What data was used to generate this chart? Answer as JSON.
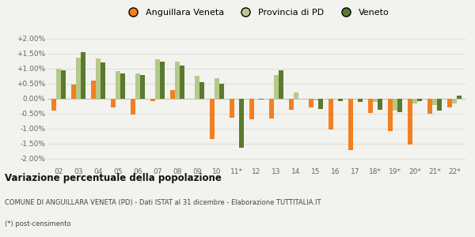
{
  "years": [
    "02",
    "03",
    "04",
    "05",
    "06",
    "07",
    "08",
    "09",
    "10",
    "11*",
    "12",
    "13",
    "14",
    "15",
    "16",
    "17",
    "18*",
    "19*",
    "20*",
    "21*",
    "22*"
  ],
  "anguillara": [
    -0.4,
    0.45,
    0.58,
    -0.3,
    -0.55,
    -0.08,
    0.28,
    0.0,
    -1.35,
    -0.65,
    -0.7,
    -0.68,
    -0.38,
    -0.3,
    -1.05,
    -1.72,
    -0.48,
    -1.1,
    -1.55,
    -0.5,
    -0.3
  ],
  "provincia": [
    1.0,
    1.35,
    1.33,
    0.9,
    0.82,
    1.3,
    1.22,
    0.75,
    0.67,
    -0.03,
    -0.02,
    0.77,
    0.2,
    -0.06,
    -0.04,
    -0.05,
    -0.13,
    -0.4,
    -0.16,
    -0.22,
    -0.18
  ],
  "veneto": [
    0.93,
    1.55,
    1.2,
    0.83,
    0.78,
    1.22,
    1.1,
    0.55,
    0.5,
    -1.65,
    -0.03,
    0.93,
    0.0,
    -0.35,
    -0.1,
    -0.12,
    -0.37,
    -0.47,
    -0.1,
    -0.4,
    0.1
  ],
  "color_anguillara": "#f28020",
  "color_provincia": "#b5c98a",
  "color_veneto": "#5a7a2e",
  "background_color": "#f2f2ee",
  "grid_color": "#e0e0d8",
  "title_bold": "Variazione percentuale della popolazione",
  "subtitle": "COMUNE DI ANGUILLARA VENETA (PD) - Dati ISTAT al 31 dicembre - Elaborazione TUTTITALIA.IT",
  "footnote": "(*) post-censimento",
  "ylim": [
    -2.25,
    2.25
  ],
  "yticks": [
    -2.0,
    -1.5,
    -1.0,
    -0.5,
    0.0,
    0.5,
    1.0,
    1.5,
    2.0
  ]
}
